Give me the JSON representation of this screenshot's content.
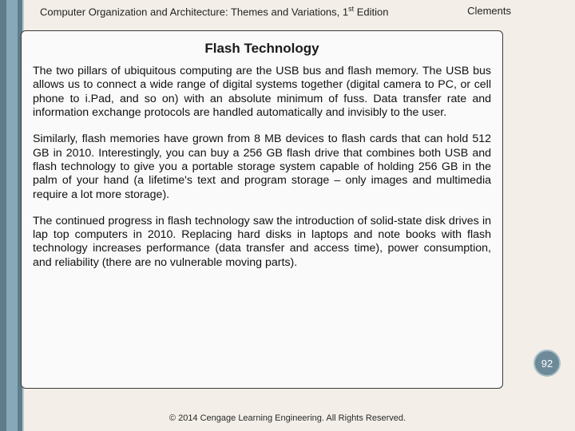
{
  "header": {
    "book_title_prefix": "Computer Organization and Architecture: Themes and Variations, 1",
    "book_title_suffix": " Edition",
    "superscript": "st",
    "author": "Clements"
  },
  "content": {
    "title": "Flash Technology",
    "para1": "The two pillars of ubiquitous computing are the USB bus and flash memory. The USB bus allows us to connect a wide range of digital systems together (digital camera to PC, or cell phone to i.Pad, and so on) with an absolute minimum of fuss. Data transfer rate and information exchange protocols are handled automatically and invisibly to the user.",
    "para2": "Similarly, flash memories have grown from 8 MB devices to flash cards that can hold 512 GB in 2010. Interestingly, you can buy a 256 GB flash drive that combines both USB and flash technology to give you a portable storage system capable of holding 256 GB in the palm of your hand (a lifetime's text and program storage – only images and multimedia require a lot more storage).",
    "para3": "The continued progress in flash technology saw the introduction of solid-state disk drives in lap top computers in 2010. Replacing hard disks in laptops and note books with flash technology increases performance (data transfer and access time), power consumption, and reliability (there are no vulnerable moving parts)."
  },
  "footer": {
    "copyright": "© 2014 Cengage Learning Engineering. All Rights Reserved."
  },
  "page_number": "92",
  "colors": {
    "slide_bg": "#f3efe8",
    "stripe_outer": "#5e7c8a",
    "stripe_inner": "#87a8b8",
    "content_bg": "#fafafa",
    "circle_bg": "#6d8a98"
  }
}
